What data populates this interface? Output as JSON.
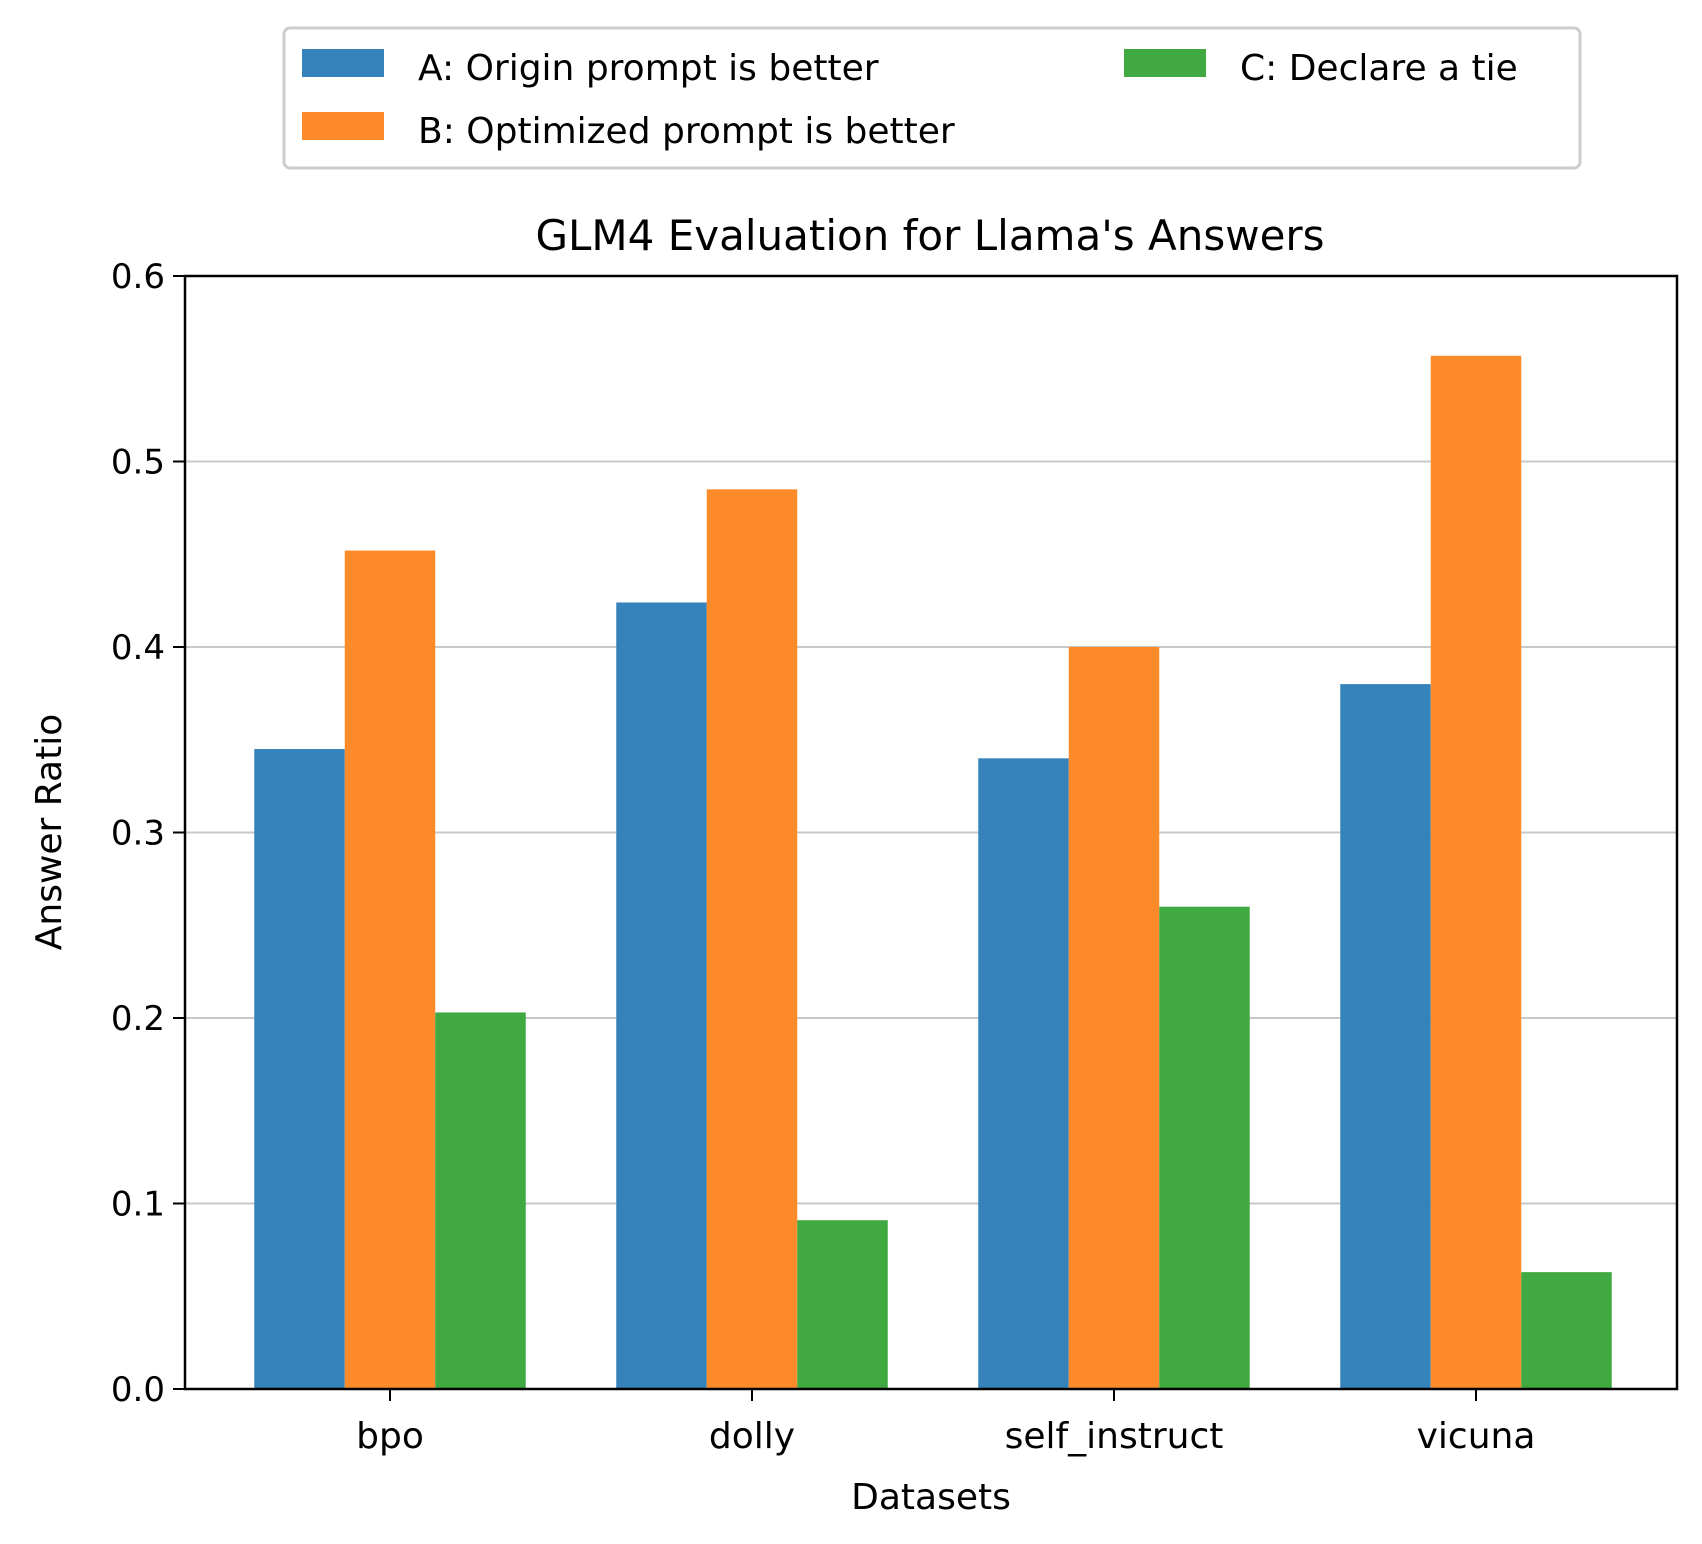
{
  "chart_data": {
    "type": "bar",
    "title": "GLM4 Evaluation for Llama's Answers",
    "xlabel": "Datasets",
    "ylabel": "Answer Ratio",
    "ylim": [
      0,
      0.6
    ],
    "yticks": [
      "0.0",
      "0.1",
      "0.2",
      "0.3",
      "0.4",
      "0.5",
      "0.6"
    ],
    "grid": "y",
    "legend_position": "top, above plot, 2 columns",
    "categories": [
      "bpo",
      "dolly",
      "self_instruct",
      "vicuna"
    ],
    "series": [
      {
        "name": "A: Origin prompt is better",
        "color": "#3683bb",
        "values": [
          0.345,
          0.424,
          0.34,
          0.38
        ]
      },
      {
        "name": "B: Optimized prompt is better",
        "color": "#fd8b2a",
        "values": [
          0.452,
          0.485,
          0.4,
          0.557
        ]
      },
      {
        "name": "C: Declare a tie",
        "color": "#41a941",
        "values": [
          0.203,
          0.091,
          0.26,
          0.063
        ]
      }
    ]
  }
}
